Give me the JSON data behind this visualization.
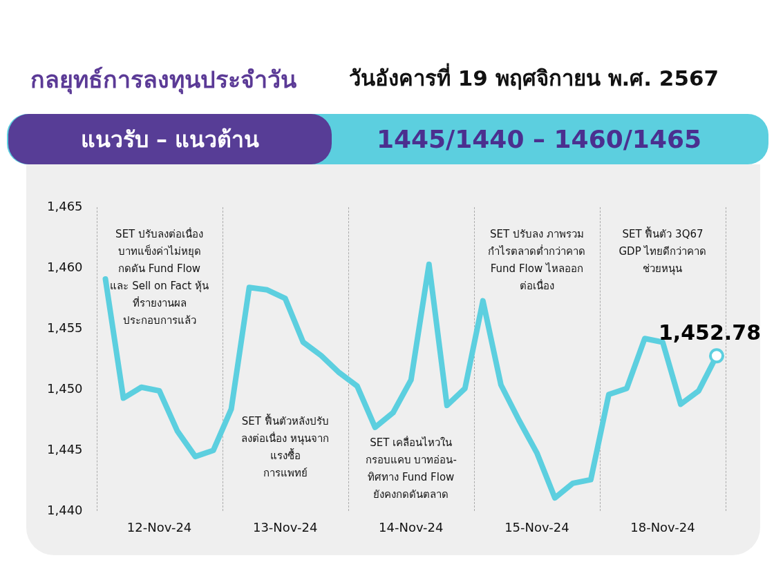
{
  "chart_data": {
    "type": "line",
    "title": "กลยุทธ์การลงทุนประจำวัน",
    "subtitle": "วันอังคารที่ 19 พฤศจิกายน พ.ศ. 2567",
    "annotations": [
      "แนวรับ – แนวต้าน",
      "1445/1440 – 1460/1465",
      "SET ปรับลงต่อเนื่อง\nบาทแข็งค่าไม่หยุด\nกดดัน Fund Flow\nและ Sell on Fact หุ้น\nที่รายงานผล\nประกอบการแล้ว",
      "SET ฟื้นตัวหลังปรับ\nลงต่อเนื่อง หนุนจาก\nแรงซื้อ\nการแพทย์",
      "SET เคลื่อนไหวใน\nกรอบแคบ บาทอ่อน-\nทิศทาง Fund Flow\nยังคงกดดันตลาด",
      "SET ปรับลง ภาพรวม\nกำไรตลาดต่ำกว่าคาด\nFund Flow ไหลออก\nต่อเนื่อง",
      "SET ฟื้นตัว 3Q67\nGDP ไทยดีกว่าคาด\nช่วยหนุน"
    ],
    "categories": [
      null,
      null,
      null,
      "12-Nov-24",
      null,
      null,
      null,
      null,
      null,
      null,
      "13-Nov-24",
      null,
      null,
      null,
      null,
      null,
      null,
      "14-Nov-24",
      null,
      null,
      null,
      null,
      null,
      null,
      "15-Nov-24",
      null,
      null,
      null,
      null,
      null,
      null,
      "18-Nov-24",
      null,
      null,
      null
    ],
    "series": [
      {
        "color": "#5ccfdf",
        "values": [
          1459.1,
          1449.3,
          1450.2,
          1449.9,
          1446.6,
          1444.5,
          1445.0,
          1448.4,
          1458.4,
          1458.2,
          1457.5,
          1453.9,
          1452.8,
          1451.4,
          1450.3,
          1446.9,
          1448.1,
          1450.8,
          1460.3,
          1448.7,
          1450.1,
          1457.3,
          1450.4,
          1447.5,
          1444.8,
          1441.1,
          1442.3,
          1442.6,
          1449.6,
          1450.1,
          1454.2,
          1453.9,
          1448.8,
          1449.9,
          1452.78
        ],
        "value_labels": [
          null,
          null,
          null,
          null,
          null,
          null,
          null,
          null,
          null,
          null,
          null,
          null,
          null,
          null,
          null,
          null,
          null,
          null,
          null,
          null,
          null,
          null,
          null,
          null,
          null,
          null,
          null,
          null,
          null,
          null,
          null,
          null,
          null,
          null,
          "1,452.78"
        ]
      }
    ],
    "ylim": [
      1440,
      1465
    ],
    "yticks": [
      {
        "value": 1440,
        "label": "1,440"
      },
      {
        "value": 1445,
        "label": "1,445"
      },
      {
        "value": 1450,
        "label": "1,450"
      },
      {
        "value": 1455,
        "label": "1,455"
      },
      {
        "value": 1460,
        "label": "1,460"
      },
      {
        "value": 1465,
        "label": "1,465"
      }
    ],
    "grid": false,
    "legend": false
  }
}
